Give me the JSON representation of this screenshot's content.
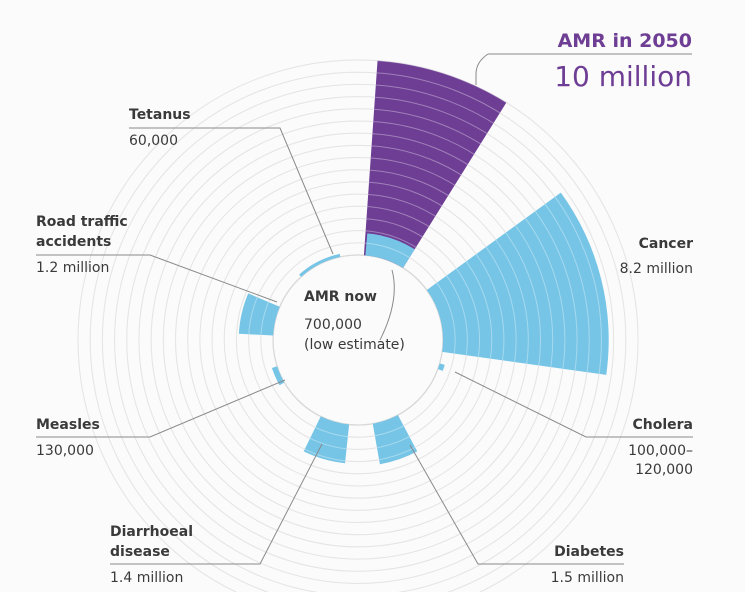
{
  "chart_data": {
    "type": "radial-bar",
    "title": "AMR in 2050",
    "headline_value": "10 million",
    "center_label": "AMR now",
    "center_value_lines": [
      "700,000",
      "(low estimate)"
    ],
    "scale_unit": "deaths per year",
    "categories": [
      {
        "key": "amr2050",
        "name": "AMR in 2050",
        "value_text": "10 million",
        "value": 10000000,
        "color": "#6e3d94"
      },
      {
        "key": "cancer",
        "name": "Cancer",
        "value_text": "8.2 million",
        "value": 8200000,
        "color": "#76c5e6"
      },
      {
        "key": "cholera",
        "name": "Cholera",
        "value_text_lines": [
          "100,000–",
          "120,000"
        ],
        "value": 120000,
        "color": "#76c5e6"
      },
      {
        "key": "diabetes",
        "name": "Diabetes",
        "value_text": "1.5 million",
        "value": 1500000,
        "color": "#76c5e6"
      },
      {
        "key": "diarrhoeal",
        "name_lines": [
          "Diarrhoeal",
          "disease"
        ],
        "value_text": "1.4 million",
        "value": 1400000,
        "color": "#76c5e6"
      },
      {
        "key": "measles",
        "name": "Measles",
        "value_text": "130,000",
        "value": 130000,
        "color": "#76c5e6"
      },
      {
        "key": "road",
        "name_lines": [
          "Road traffic",
          "accidents"
        ],
        "value_text": "1.2 million",
        "value": 1200000,
        "color": "#76c5e6"
      },
      {
        "key": "tetanus",
        "name": "Tetanus",
        "value_text": "60,000",
        "value": 60000,
        "color": "#76c5e6"
      },
      {
        "key": "amrnow",
        "name": "AMR now",
        "value_text": "700,000",
        "value": 700000,
        "color": "#76c5e6"
      }
    ]
  },
  "colors": {
    "purple": "#6e3d94",
    "blue": "#76c5e6",
    "grid": "#d8d8d8",
    "leader": "#8a8a8a",
    "text": "#3a3a3a"
  }
}
